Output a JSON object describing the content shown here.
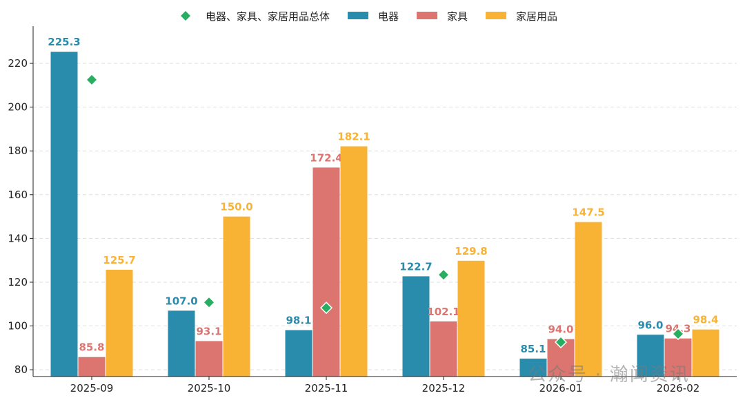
{
  "chart_data": {
    "type": "bar",
    "title": "",
    "xlabel": "",
    "ylabel": "",
    "categories": [
      "2025-09",
      "2025-10",
      "2025-11",
      "2025-12",
      "2026-01",
      "2026-02"
    ],
    "series": [
      {
        "name": "电器",
        "type": "bar",
        "color": "#2a8cad",
        "values": [
          225.3,
          107.0,
          98.1,
          122.7,
          85.1,
          96.0
        ]
      },
      {
        "name": "家具",
        "type": "bar",
        "color": "#dc7570",
        "values": [
          85.8,
          93.1,
          172.4,
          102.1,
          94.0,
          94.3
        ]
      },
      {
        "name": "家居用品",
        "type": "bar",
        "color": "#f8b334",
        "values": [
          125.7,
          150.0,
          182.1,
          129.8,
          147.5,
          98.4
        ]
      },
      {
        "name": "电器、家具、家居用品总体",
        "type": "scatter",
        "marker": "diamond",
        "color": "#27ae60",
        "values": [
          212.5,
          110.8,
          108.3,
          123.4,
          92.6,
          96.4
        ]
      }
    ],
    "ylim": [
      76.9,
      237
    ],
    "yticks": [
      80,
      100,
      120,
      140,
      160,
      180,
      200,
      220
    ],
    "grid": "horizontal dashed",
    "legend": "top-center",
    "data_labels": true
  },
  "watermark": "公众号 · 瀚闻资讯"
}
